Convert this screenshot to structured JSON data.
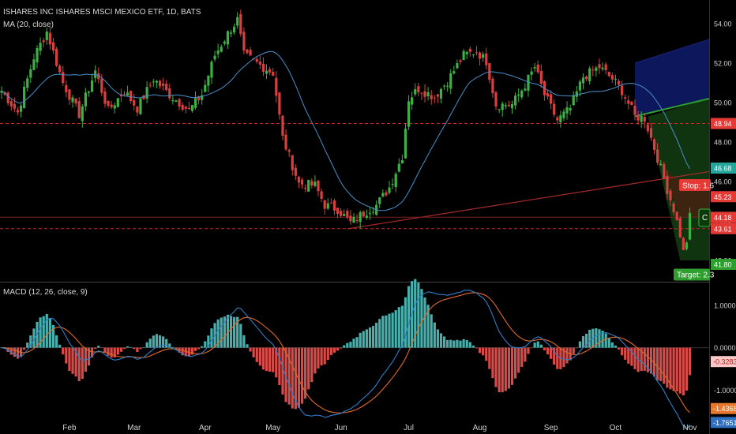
{
  "header": {
    "title": "ISHARES INC ISHARES MSCI MEXICO ETF, 1D, BATS",
    "ma_label": "MA (20, close)",
    "macd_label": "MACD (12, 26, close, 9)"
  },
  "colors": {
    "background": "#000000",
    "up": "#26a69a",
    "down": "#ef5350",
    "candle_up": "#3cb043",
    "candle_down": "#d84040",
    "ma": "#4a90c8",
    "macd_line": "#2f7fc9",
    "signal_line": "#e06a2b",
    "hist_pos": "#4fc3c0",
    "hist_neg": "#ef5350",
    "red_dashed": "#c62828",
    "trendline": "#a52a2a",
    "channel_line": "#2e9e2e",
    "channel_fill": "#0d1a66"
  },
  "chart_data": [
    {
      "type": "candlestick",
      "title": "ISHARES INC ISHARES MSCI MEXICO ETF, 1D, BATS",
      "ylim": [
        41.0,
        55.0
      ],
      "y_ticks": [
        "54.00",
        "52.00",
        "50.00",
        "48.00",
        "46.00",
        "44.00",
        "42.00"
      ],
      "x_labels": [
        "Feb",
        "Mar",
        "Apr",
        "May",
        "Jun",
        "Jul",
        "Aug",
        "Sep",
        "Oct",
        "Nov"
      ],
      "x_label_day_index": [
        21,
        41,
        63,
        84,
        105,
        126,
        148,
        170,
        190,
        213
      ],
      "close_anchors": [
        [
          0,
          50.6
        ],
        [
          5,
          49.5
        ],
        [
          10,
          52.3
        ],
        [
          14,
          53.6
        ],
        [
          19,
          51.0
        ],
        [
          24,
          49.4
        ],
        [
          29,
          51.6
        ],
        [
          33,
          49.6
        ],
        [
          38,
          50.6
        ],
        [
          42,
          49.7
        ],
        [
          47,
          51.2
        ],
        [
          52,
          50.4
        ],
        [
          58,
          49.6
        ],
        [
          62,
          50.4
        ],
        [
          66,
          52.4
        ],
        [
          70,
          53.5
        ],
        [
          73,
          54.2
        ],
        [
          75,
          52.4
        ],
        [
          80,
          51.9
        ],
        [
          84,
          51.5
        ],
        [
          87,
          48.2
        ],
        [
          92,
          45.9
        ],
        [
          97,
          45.8
        ],
        [
          100,
          44.8
        ],
        [
          104,
          44.6
        ],
        [
          108,
          43.9
        ],
        [
          112,
          44.4
        ],
        [
          116,
          44.8
        ],
        [
          120,
          45.7
        ],
        [
          124,
          47.3
        ],
        [
          126,
          50.2
        ],
        [
          129,
          50.7
        ],
        [
          134,
          50.3
        ],
        [
          138,
          51.1
        ],
        [
          143,
          52.4
        ],
        [
          147,
          52.6
        ],
        [
          150,
          52.1
        ],
        [
          153,
          49.9
        ],
        [
          158,
          49.9
        ],
        [
          162,
          50.9
        ],
        [
          165,
          51.8
        ],
        [
          168,
          50.4
        ],
        [
          172,
          49.1
        ],
        [
          176,
          49.7
        ],
        [
          180,
          51.3
        ],
        [
          185,
          51.8
        ],
        [
          189,
          51.2
        ],
        [
          192,
          50.6
        ],
        [
          196,
          49.3
        ],
        [
          199,
          49.2
        ],
        [
          201,
          48.2
        ],
        [
          203,
          47.2
        ],
        [
          206,
          45.6
        ],
        [
          208,
          44.6
        ],
        [
          210,
          43.3
        ],
        [
          211,
          42.4
        ],
        [
          212,
          43.0
        ],
        [
          213,
          44.2
        ]
      ],
      "ma_period": 20,
      "price_labels": [
        {
          "value": "48.94",
          "color": "#e53935"
        },
        {
          "value": "46.68",
          "color": "#26a69a"
        },
        {
          "value": "45.23",
          "color": "#e53935"
        },
        {
          "value": "44.19",
          "color": "#333333"
        },
        {
          "value": "44.18",
          "color": "#e53935"
        },
        {
          "value": "43.61",
          "color": "#e53935"
        },
        {
          "value": "41.80",
          "color": "#2e9e2e"
        }
      ],
      "annotations": {
        "stop": "Stop: 1.6",
        "target": "Target: 2.3",
        "current_marker": "C"
      },
      "levels": {
        "red_dashed": [
          48.94,
          43.61
        ],
        "horizontal_line": 44.19
      }
    },
    {
      "type": "macd",
      "title": "MACD (12, 26, close, 9)",
      "ylim": [
        -2.0,
        1.5
      ],
      "y_ticks": [
        "1.0000",
        "0.0000",
        "-1.0000"
      ],
      "last_values": {
        "histogram": {
          "value": "-0.3283",
          "color": "#f8c8c8"
        },
        "signal": {
          "value": "-1.4368",
          "color": "#e8772e"
        },
        "macd": {
          "value": "-1.7651",
          "color": "#2f6fc0"
        }
      }
    }
  ]
}
